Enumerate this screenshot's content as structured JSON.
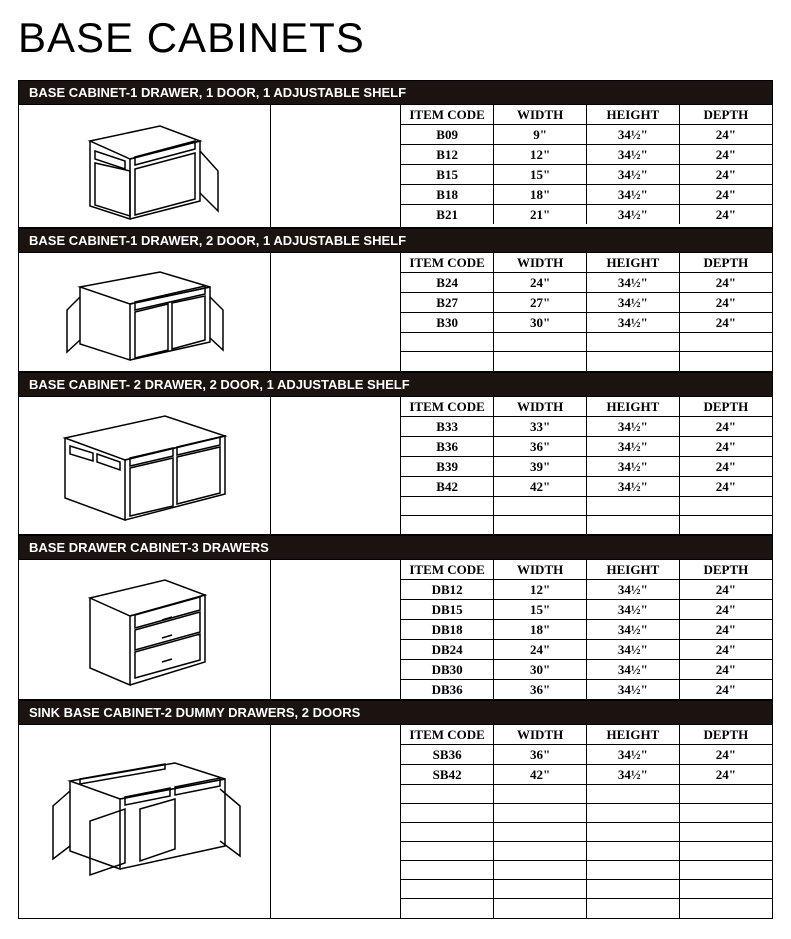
{
  "title": "BASE CABINETS",
  "columns": [
    "ITEM CODE",
    "WIDTH",
    "HEIGHT",
    "DEPTH"
  ],
  "colors": {
    "header_bg": "#1a1310",
    "header_fg": "#ffffff",
    "border": "#000000",
    "page_bg": "#ffffff"
  },
  "sections": [
    {
      "title": "BASE CABINET-1 DRAWER, 1 DOOR, 1 ADJUSTABLE SHELF",
      "min_rows": 5,
      "rows": [
        {
          "code": "B09",
          "width": "9\"",
          "height": "34½\"",
          "depth": "24\""
        },
        {
          "code": "B12",
          "width": "12\"",
          "height": "34½\"",
          "depth": "24\""
        },
        {
          "code": "B15",
          "width": "15\"",
          "height": "34½\"",
          "depth": "24\""
        },
        {
          "code": "B18",
          "width": "18\"",
          "height": "34½\"",
          "depth": "24\""
        },
        {
          "code": "B21",
          "width": "21\"",
          "height": "34½\"",
          "depth": "24\""
        }
      ]
    },
    {
      "title": "BASE CABINET-1 DRAWER, 2 DOOR, 1 ADJUSTABLE SHELF",
      "min_rows": 5,
      "rows": [
        {
          "code": "B24",
          "width": "24\"",
          "height": "34½\"",
          "depth": "24\""
        },
        {
          "code": "B27",
          "width": "27\"",
          "height": "34½\"",
          "depth": "24\""
        },
        {
          "code": "B30",
          "width": "30\"",
          "height": "34½\"",
          "depth": "24\""
        }
      ]
    },
    {
      "title": "BASE CABINET- 2 DRAWER, 2 DOOR, 1 ADJUSTABLE SHELF",
      "min_rows": 6,
      "rows": [
        {
          "code": "B33",
          "width": "33\"",
          "height": "34½\"",
          "depth": "24\""
        },
        {
          "code": "B36",
          "width": "36\"",
          "height": "34½\"",
          "depth": "24\""
        },
        {
          "code": "B39",
          "width": "39\"",
          "height": "34½\"",
          "depth": "24\""
        },
        {
          "code": "B42",
          "width": "42\"",
          "height": "34½\"",
          "depth": "24\""
        }
      ]
    },
    {
      "title": "BASE DRAWER CABINET-3 DRAWERS",
      "min_rows": 6,
      "rows": [
        {
          "code": "DB12",
          "width": "12\"",
          "height": "34½\"",
          "depth": "24\""
        },
        {
          "code": "DB15",
          "width": "15\"",
          "height": "34½\"",
          "depth": "24\""
        },
        {
          "code": "DB18",
          "width": "18\"",
          "height": "34½\"",
          "depth": "24\""
        },
        {
          "code": "DB24",
          "width": "24\"",
          "height": "34½\"",
          "depth": "24\""
        },
        {
          "code": "DB30",
          "width": "30\"",
          "height": "34½\"",
          "depth": "24\""
        },
        {
          "code": "DB36",
          "width": "36\"",
          "height": "34½\"",
          "depth": "24\""
        }
      ]
    },
    {
      "title": "SINK BASE CABINET-2 DUMMY DRAWERS, 2 DOORS",
      "min_rows": 9,
      "rows": [
        {
          "code": "SB36",
          "width": "36\"",
          "height": "34½\"",
          "depth": "24\""
        },
        {
          "code": "SB42",
          "width": "42\"",
          "height": "34½\"",
          "depth": "24\""
        }
      ]
    }
  ]
}
